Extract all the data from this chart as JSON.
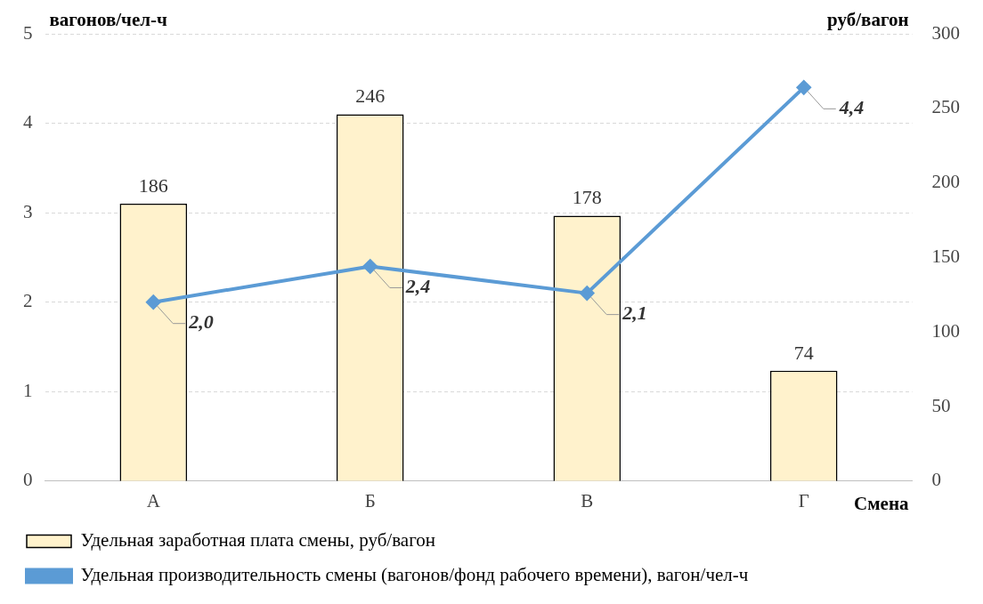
{
  "chart_data": {
    "type": "bar",
    "categories": [
      "А",
      "Б",
      "В",
      "Г"
    ],
    "xlabel": "Смена",
    "ylabel": "вагонов/чел-ч",
    "y2label": "руб/вагон",
    "series": [
      {
        "name": "Удельная заработная плата смены, руб/вагон",
        "axis": "y2",
        "color": "#fff2cc",
        "values": [
          186,
          246,
          178,
          74
        ],
        "data_labels": true
      },
      {
        "name": "Удельная производительность смены (вагонов/фонд рабочего времени), вагон/чел-ч",
        "type": "line",
        "axis": "y",
        "color": "#5b9bd5",
        "values": [
          2.0,
          2.4,
          2.1,
          4.4
        ],
        "value_labels": [
          "2,0",
          "2,4",
          "2,1",
          "4,4"
        ],
        "marker": "diamond"
      }
    ],
    "ylim": [
      0,
      5
    ],
    "yticks": [
      0,
      1,
      2,
      3,
      4,
      5
    ],
    "y2lim": [
      0,
      300
    ],
    "y2ticks": [
      0,
      50,
      100,
      150,
      200,
      250,
      300
    ],
    "grid": "y",
    "legend": "bottom"
  }
}
